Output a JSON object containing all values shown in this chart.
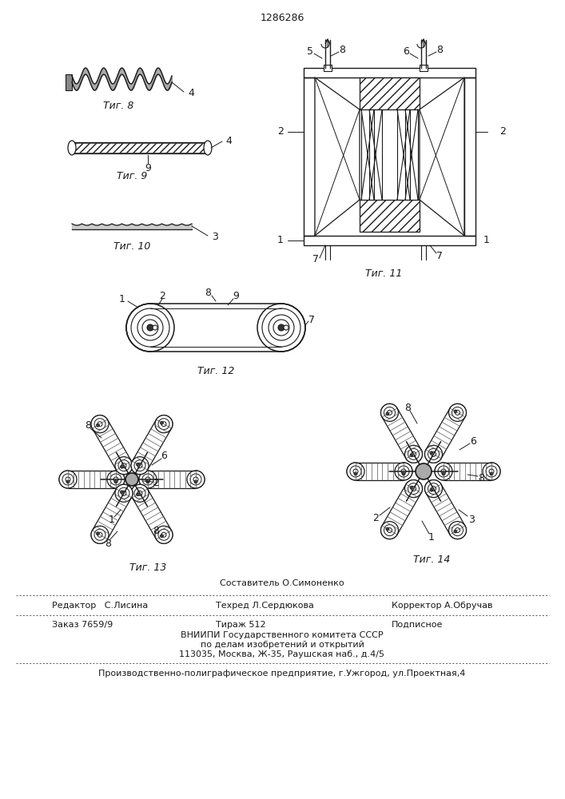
{
  "patent_number": "1286286",
  "background_color": "#ffffff",
  "line_color": "#1a1a1a",
  "fig_labels": {
    "fig8": "Τиг. 8",
    "fig9": "Τиг. 9",
    "fig10": "Τиг. 10",
    "fig11": "Τиг. 11",
    "fig12": "Τиг. 12",
    "fig13": "Τиг. 13",
    "fig14": "Τиг. 14"
  },
  "bottom_text": {
    "line1": "Составитель О.Симоненко",
    "line2_left": "Редактор   С.Лисина",
    "line2_mid": "Техред Л.Сердюкова",
    "line2_right": "Корректор А.Обручав",
    "line3_left": "Заказ 7659/9",
    "line3_mid": "Тираж 512",
    "line3_right": "Подписное",
    "line4": "ВНИИПИ Государственного комитета СССР",
    "line5": "по делам изобретений и открытий",
    "line6": "113035, Москва, Ж-35, Раушская наб., д.4/5",
    "line7": "Производственно-полиграфическое предприятие, г.Ужгород, ул.Проектная,4"
  }
}
